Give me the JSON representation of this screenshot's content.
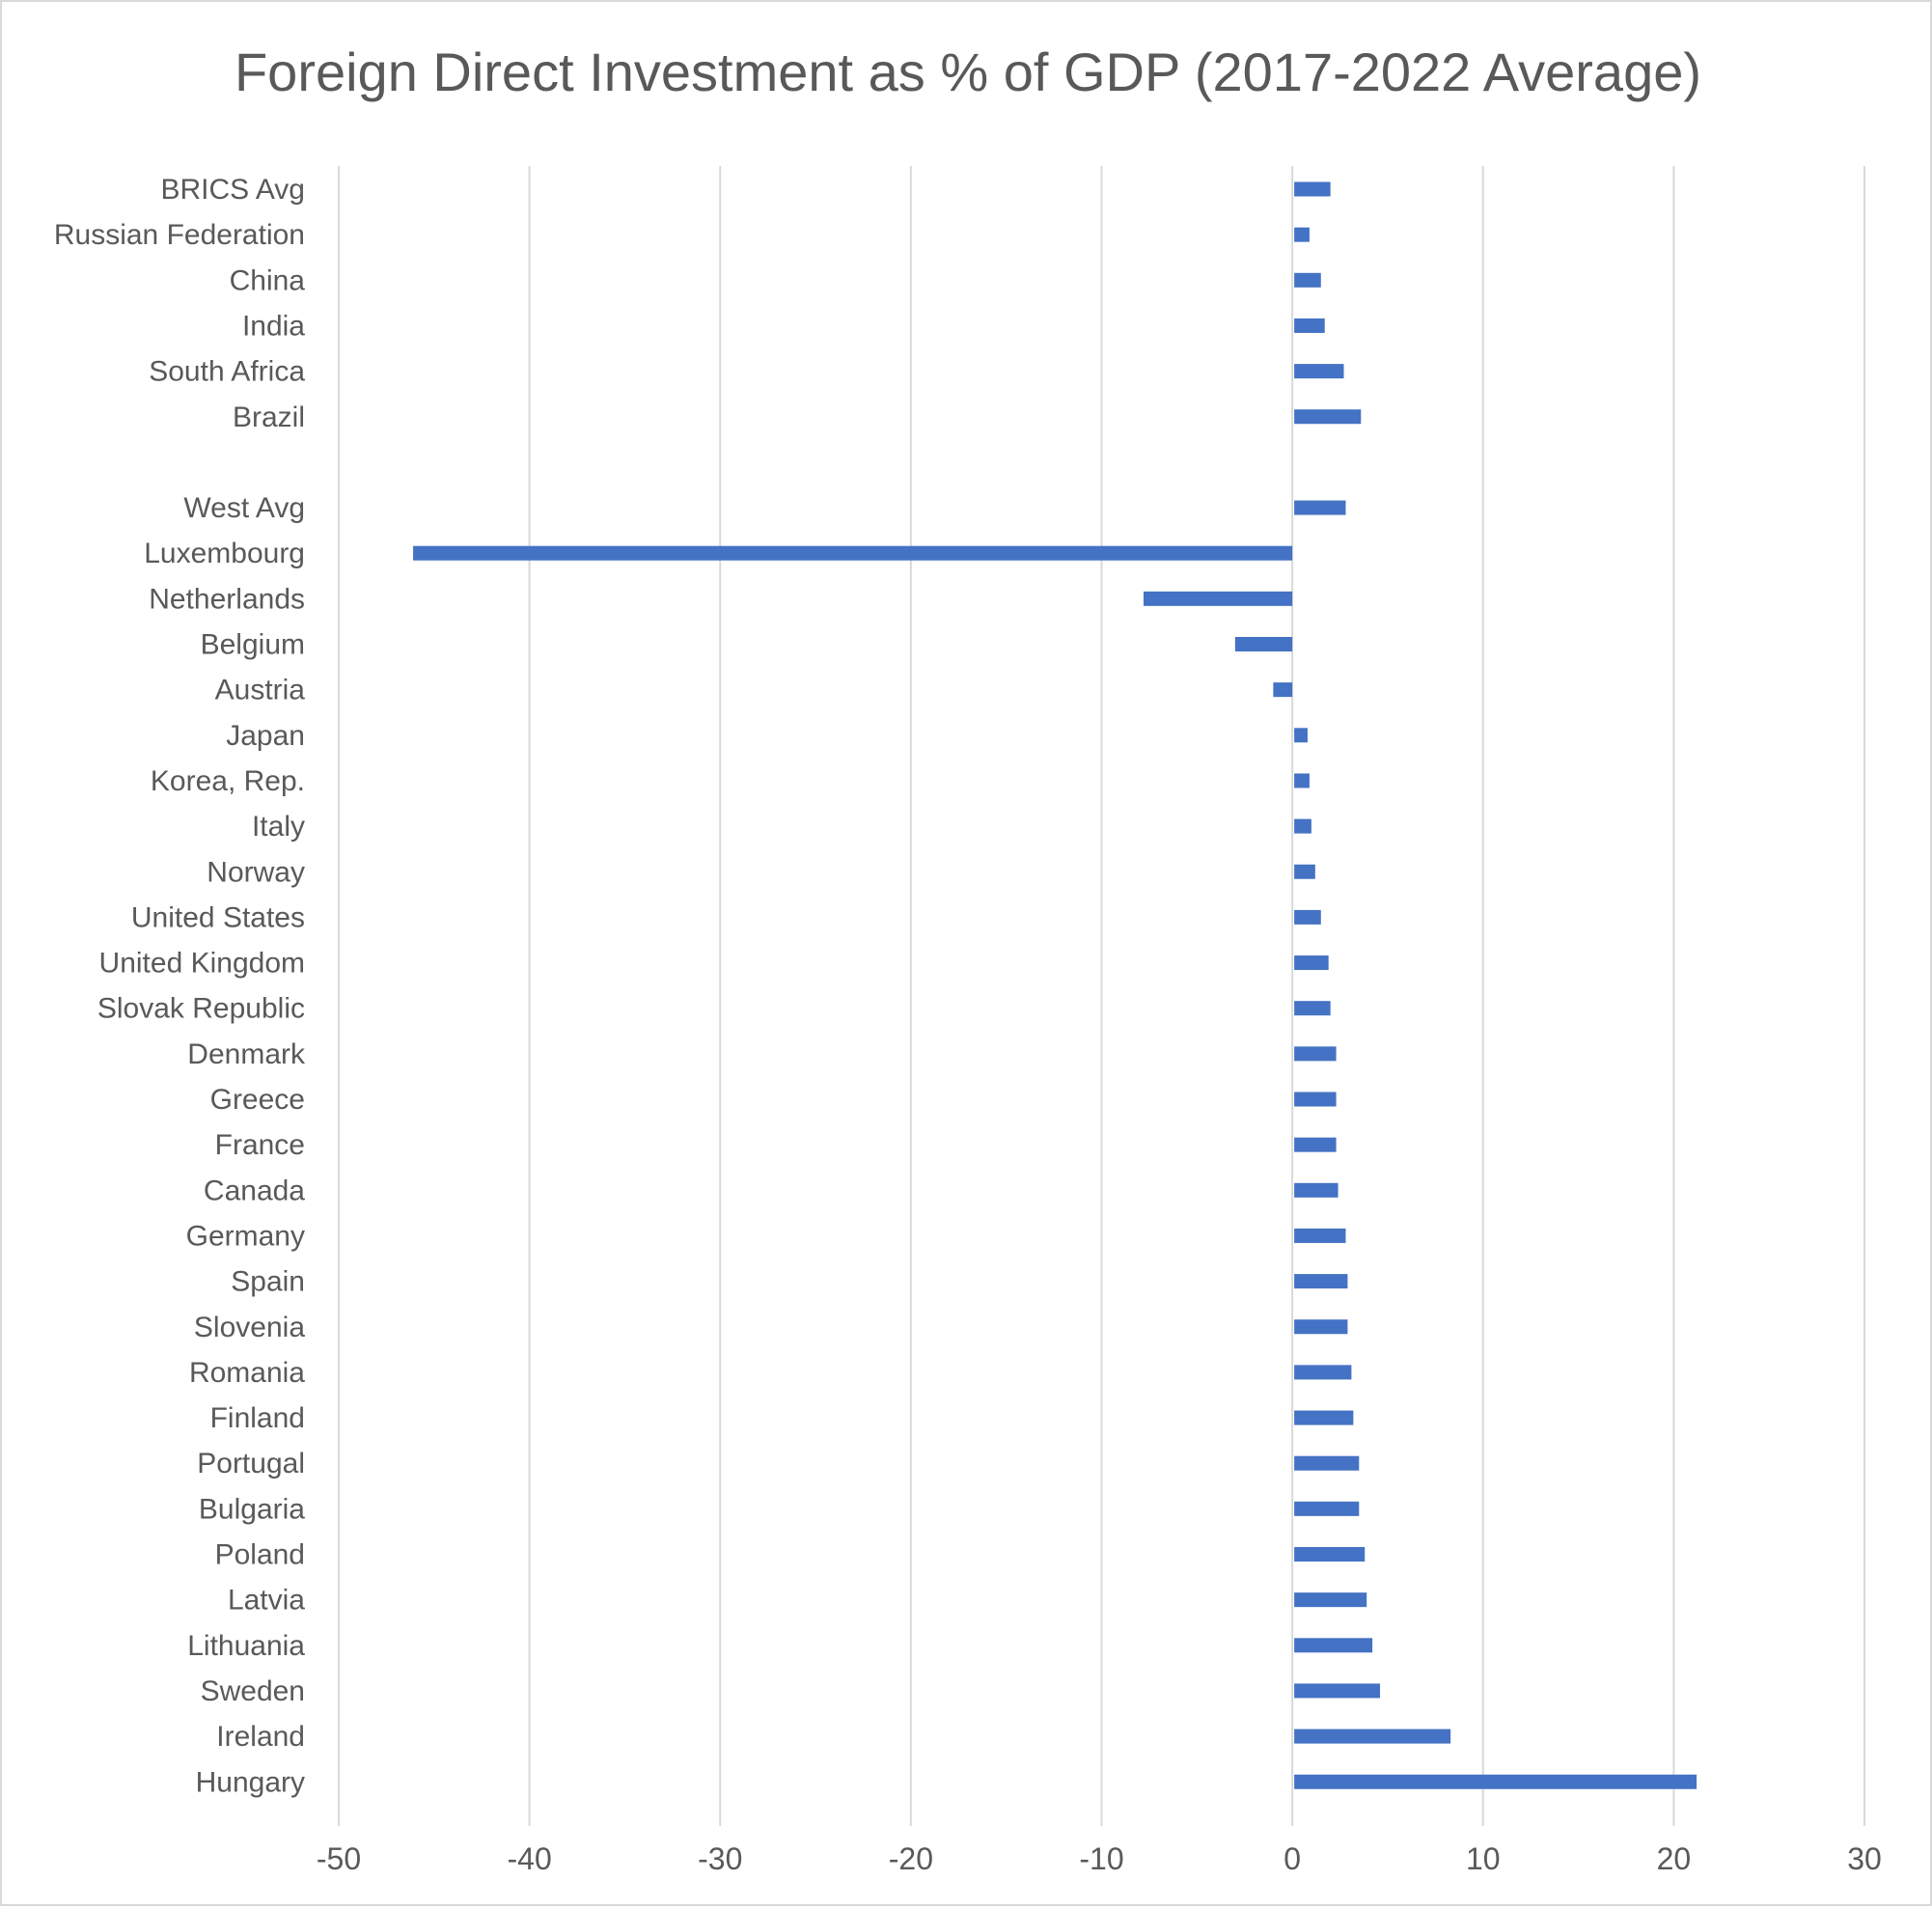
{
  "chart_data": {
    "type": "bar",
    "orientation": "horizontal",
    "title": "Foreign Direct Investment as % of GDP (2017-2022 Average)",
    "xlabel": "",
    "ylabel": "",
    "xlim": [
      -50,
      30
    ],
    "x_ticks": [
      -50,
      -40,
      -30,
      -20,
      -10,
      0,
      10,
      20,
      30
    ],
    "grid": true,
    "legend": "none",
    "bar_color": "#4472C4",
    "categories": [
      "BRICS Avg",
      "Russian Federation",
      "China",
      "India",
      "South Africa",
      "Brazil",
      "",
      "West Avg",
      "Luxembourg",
      "Netherlands",
      "Belgium",
      "Austria",
      "Japan",
      "Korea, Rep.",
      "Italy",
      "Norway",
      "United States",
      "United Kingdom",
      "Slovak Republic",
      "Denmark",
      "Greece",
      "France",
      "Canada",
      "Germany",
      "Spain",
      "Slovenia",
      "Romania",
      "Finland",
      "Portugal",
      "Bulgaria",
      "Poland",
      "Latvia",
      "Lithuania",
      "Sweden",
      "Ireland",
      "Hungary"
    ],
    "values": [
      2.0,
      0.9,
      1.5,
      1.7,
      2.7,
      3.6,
      null,
      2.8,
      -46.1,
      -7.8,
      -3.0,
      -1.0,
      0.8,
      0.9,
      1.0,
      1.2,
      1.5,
      1.9,
      2.0,
      2.3,
      2.3,
      2.3,
      2.4,
      2.8,
      2.9,
      2.9,
      3.1,
      3.2,
      3.5,
      3.5,
      3.8,
      3.9,
      4.2,
      4.6,
      8.3,
      21.2
    ]
  }
}
